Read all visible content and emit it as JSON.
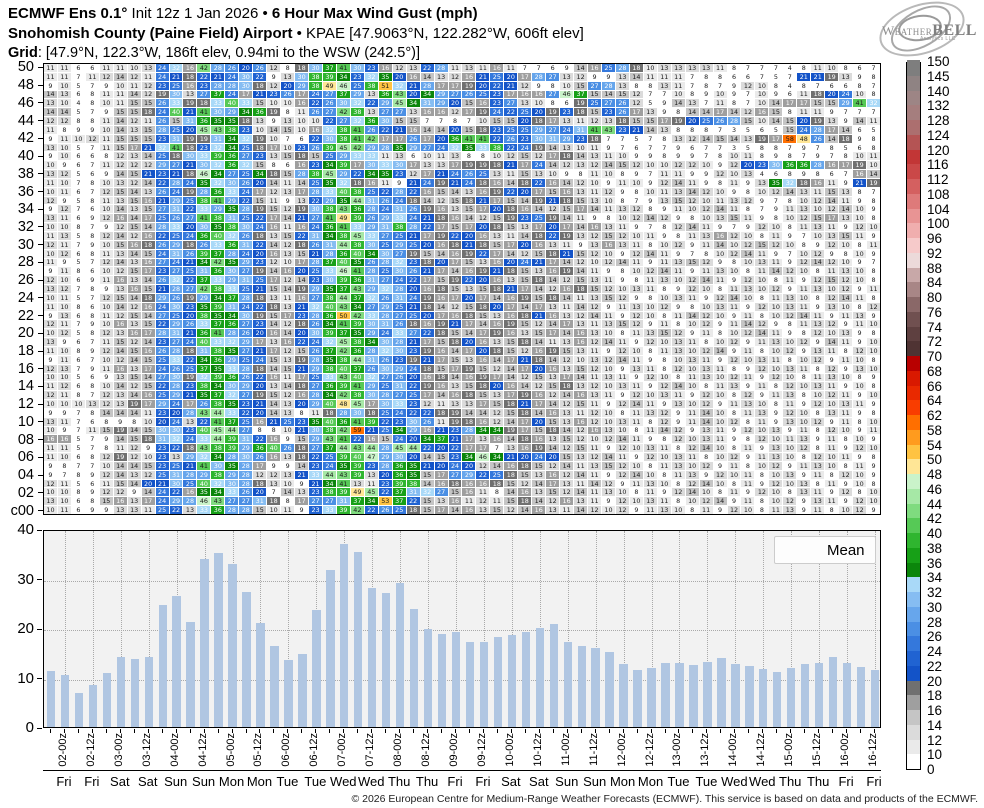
{
  "title": {
    "model": "ECMWF Ens 0.1°",
    "init": " Init 12z 1 Jan 2026 • ",
    "param": "6 Hour Max Wind Gust (mph)",
    "location": "Snohomish County (Paine Field) Airport",
    "station": " • KPAE [47.9063°N, 122.282°W, 606ft elev]",
    "grid_label": "Grid",
    "grid_info": ": [47.9°N, 122.3°W, 186ft elev, 0.94mi to the WSW (242.5°)]"
  },
  "logo": {
    "brand_a": "Weather",
    "brand_b": "BELL",
    "sub": "Analytics LLC"
  },
  "chart_data": [
    {
      "type": "heatmap",
      "columns": 60,
      "row_axis_labels": [
        "50",
        "48",
        "46",
        "44",
        "42",
        "40",
        "38",
        "36",
        "34",
        "32",
        "30",
        "28",
        "26",
        "24",
        "22",
        "20",
        "18",
        "16",
        "14",
        "12",
        "10",
        "08",
        "06",
        "04",
        "02",
        "c00"
      ],
      "colorbar": {
        "ticks": [
          0,
          10,
          12,
          14,
          16,
          18,
          20,
          22,
          24,
          26,
          28,
          30,
          32,
          34,
          36,
          38,
          40,
          42,
          44,
          46,
          48,
          50,
          54,
          58,
          62,
          64,
          66,
          68,
          70,
          72,
          74,
          76,
          80,
          84,
          88,
          92,
          96,
          100,
          104,
          108,
          112,
          116,
          120,
          124,
          128,
          132,
          140,
          145,
          150
        ],
        "bands": [
          "#ffffff",
          "#eaeaea",
          "#dbdbdb",
          "#c5c5c5",
          "#9f9f9f",
          "#707070",
          "#1353c8",
          "#2063d2",
          "#3478dc",
          "#4b8fe4",
          "#67a6ec",
          "#86bdf2",
          "#a9d9f8",
          "#0b860b",
          "#17a017",
          "#2fb52f",
          "#56c956",
          "#7fdb7f",
          "#a6e8a6",
          "#caf3ca",
          "#ffe696",
          "#ffc342",
          "#ff9b1e",
          "#ff6f00",
          "#f93d00",
          "#e92900",
          "#d91900",
          "#b80000",
          "#4f3333",
          "#5e4040",
          "#705050",
          "#8a6868",
          "#a88686",
          "#c8a8a8",
          "#ecdada",
          "#f6caca",
          "#f0aeae",
          "#e89494",
          "#de7a7a",
          "#d46060",
          "#ca4848",
          "#c23636",
          "#b45454",
          "#ac6f6f",
          "#a57e7e",
          "#9d8585",
          "#8f8383",
          "#7e7e7e"
        ]
      },
      "rows": [
        {
          "id": "50",
          "v": "11110606111110132432 16422826202612081830 37413023161213222811 13111611070706091416 25281810131313131108 07070704081110080607"
        },
        {
          "id": "49",
          "v": "11110711121412112421 18222124302209133038 39342332352016141312 16212520172827131209 09131411111107080806 06070507212119130908"
        },
        {
          "id": "48",
          "v": "09100507091011122325 16232828301812202938 49462538513221281717 19202221120908101527 28130808131107080709 12100804080706060807"
        },
        {
          "id": "47",
          "v": "14130608111114121930 13273724172123261724 27372913364320342927 26252317161627463715 14151207071008091009 07100906111820241008"
        },
        {
          "id": "46",
          "v": "13100408101115152633 19183340331510101622 26303222294534312920 15162327131008061925 27261205091413071108 07101417171515294132"
        },
        {
          "id": "45",
          "v": "14140507091515182440 21413029343619081126 27423813272713161612 17192422252019231815 23261713090814141714 12161508111109070707"
        },
        {
          "id": "44",
          "v": "12120808111412112615 31363535181309131010 22273236301515070708 07101515201817131112 13181515171920252628 15101415201913091411"
        },
        {
          "id": "43",
          "v": "11080909101413152825 20454338231014151016 32384126222116141420 15182325252927243141 43232114130808080703 05060515242817140605"
        },
        {
          "id": "42",
          "v": "09111012111515152331 19193134321910070622 30384142171726172036 41412226233031292318 07070507081312141514 13191758482614180908"
        },
        {
          "id": "41",
          "v": "13100507111517213241 18233234251817102326 39454229283529272432 35333822241914131011 09070607070906070703 05080807090708050608"
        },
        {
          "id": "40",
          "v": "09100606081213142518 30333936272313151815 25293333111306101113 08081012151217181413 11100909080909070810 11080908070907081011"
        },
        {
          "id": "39",
          "v": "10090607111212122927 21303236321508061623 34391730333017131317 19191821172414121312 14151210101212100912 20233036362816171910"
        },
        {
          "id": "38",
          "v": "13120506091415212321 18463427253418152838 45292234352312172124 26251311151310090811 10080907111109091210 13040608090806071614"
        },
        {
          "id": "37",
          "v": "11100708101312142228 24353230262014111425 35321816110921241921 24181614182216141210 09111009121411090811 09133532181611092119"
        },
        {
          "id": "36",
          "v": "10110607121514132624 19283633241712131728 33403825222822161514 13161922201715161311 12090810111314121009 08101214131115130807"
        },
        {
          "id": "35",
          "v": "12090508111315162129 25384129221511091322 29354431262418141215 18211715141921181513 10080709131512101113 12090708101214110908"
        },
        {
          "id": "34",
          "v": "09120706101413152731 22332935281915121930 38433628243126191613 15172018161412151714 11131208091110121411 08070911131012141009"
        },
        {
          "id": "33",
          "v": "13110609121614172526 27413831252217142127 41493926293324211816 14121519232519141109 08101214120908101315 11090810121517131008"
        },
        {
          "id": "32",
          "v": "10100807091215142833 20303538302416111624 36413329313828221715 17201815131720171416 13110907081214110907 09121008111311091210"
        },
        {
          "id": "31",
          "v": "11130508121412162225 24364032261813152231 34384533272521171922 20161311141822191312 15121011090811131612 10081109071013151109"
        },
        {
          "id": "30",
          "v": "12110709101516182629 18263336312214121826 31443830252925201618 21181517201613110913 16131108101209111410 12151210080912100811"
        },
        {
          "id": "29",
          "v": "10120608111314152431 26393728242016131521 28364034302719151416 19221714121518211512 10091214110907081012 14110907101209081009"
        },
        {
          "id": "28",
          "v": "11090507121413162724 21344235292312101728 37403526283223182017 15131620242117141210 12141109111315120908 10131109121412100907"
        },
        {
          "id": "27",
          "v": "09110806101215172327 25313630271914162025 33464128253026211714 16192118151316191411 09081012141109111310 08111412100811131008"
        },
        {
          "id": "26",
          "v": "12100609111613142632 22373329312517121423 30393631272422171519 22201613151814121513 11090811131012141109 12100811091215121008"
        },
        {
          "id": "25",
          "v": "13120708091316152128 27423833252115141929 35374329322820161815 13151821171412161815 12101311080912100811 13101209111310120911"
        },
        {
          "id": "24",
          "v": "10110507121514182926 19293437281813111627 38443732263124191617 20171416191518141113 15120908101311091214 10081113100812141108"
        },
        {
          "id": "23",
          "v": "11100806101412162430 23353931242218132132 40433427292521181412 15182017141713111412 09111310120908101311 09121013110913100812"
        },
        {
          "id": "22",
          "v": "09130608111215142725 20383534301915172328 36504233282725201716 18151316182116131214 11091210081114121009 11081012141109111309"
        },
        {
          "id": "21",
          "v": "12110709101613152229 26333736272314121826 34413930312618161921 17141619151214171311 13151209110810120911 14120908111312091110"
        },
        {
          "id": "20",
          "v": "10120508121316172831 21364128262016142030 39373529243327221815 14171916131517141613 10081113151209110810 12141109081210130908"
        },
        {
          "id": "19",
          "v": "13090607111512142327 24403332291713162224 32453834302821171518 20161315181411131612 14110912101311081012 09111310120914110910"
        },
        {
          "id": "18",
          "v": "11100809121415162628 18313835272117121526 37423628323023191614 17201815121619151311 09121008111310121409 11081012091311081210"
        },
        {
          "id": "17",
          "v": "09110607101214152533 22343629252415131928 35384431262319211715 13161417211814121013 12141109081013110912 10131108101209111008"
        },
        {
          "id": "16",
          "v": "12130709111613172426 25373533281814152129 38403726302924181517 19151214172016131512 10091311081210131108 09121013110812091310"
        },
        {
          "id": "15",
          "v": "10100506091315142730 19323936262216111725 33434032272620161814 16191714121513171411 13110912100811131012 11091210081113100809"
        },
        {
          "id": "14",
          "v": "11120608101412152228 23383430292013141827 36394129253122191613 15182016141215181312 10131109121410081113 09110812101311091008"
        },
        {
          "id": "13",
          "v": "12110807121314162529 21353732271915121628 34423830282725171416 18151317191612141613 11091210131109121008 12091113081012110910"
        },
        {
          "id": "12",
          "v": "10101013121319172924 17263835232114132029 40484517303323121113 13171518211714121511 09121411091310120911 13100811091210131109"
        },
        {
          "id": "11",
          "v": "09090708141414112320 28434433222014130811 18283018252422221819 14141215181416131112 10081113120911141008 11130912100813110908"
        },
        {
          "id": "10",
          "v": "13110706080908102024 13224137251621252335 40364139222330261119 18161214172015131612 10131108120911141012 08110913101209110810"
        },
        {
          "id": "09",
          "v": "10090711151914153030 23404544270808102130 38425921253429162123 28343419171518141216 13100811141209131109 12101309110812100911"
        },
        {
          "id": "08",
          "v": "16160507091415183132 24334439312216091529 43412216152420343721 17131614181613151210 12141109081210131109 08121011130911081009"
        },
        {
          "id": "07",
          "v": "11110507081112092322 18433839293640261827 37444344284544222022 17170713161914121511 09121013110812141008 11091310120811091210"
        },
        {
          "id": "06",
          "v": "11100608121912102313 29323428302616131822 25394047293020141523 34463421202420151312 14110912101311081012 09111310081210110908"
        },
        {
          "id": "05",
          "v": "09080707101414152325 21413035281709091423 24353923283635212024 20121416181512141113 15121008111310120911 08101209111310081109"
        },
        {
          "id": "04",
          "v": "09070809121413122531 28293829281212132133 44433913203635151727 29222518151316121411 09121410081113091210 11081013091108121009"
        },
        {
          "id": "03",
          "v": "12110506111514202130 25403230281813100921 34411311233938141618 16161815121417131114 12091113100812141008 11091210130811091008"
        },
        {
          "id": "02",
          "v": "10100809121209142422 16353433262007141323 38394945223731322715 16110814161315121411 13100811091214100811 09121008131109120810"
        },
        {
          "id": "01",
          "v": "13100608151613172429 28464327273118081727 27313734533722151316 11121115181412161311 09121013110810121409 11081012091311091210"
        },
        {
          "id": "c00",
          "v": "10110609091313112522 13333628281510110923 33394222262518151714 16131512141613111412 10120911131008110912 10081113091108101209"
        }
      ]
    },
    {
      "type": "bar",
      "series": [
        {
          "name": "Mean",
          "values": [
            11.5,
            10.7,
            7.0,
            8.5,
            11.1,
            14.3,
            13.8,
            14.2,
            24.8,
            26.8,
            21.5,
            34.3,
            35.5,
            33.3,
            27.6,
            21.3,
            16.6,
            13.6,
            15.0,
            23.8,
            32.1,
            37.3,
            35.8,
            28.4,
            27.3,
            29.4,
            24.0,
            20.1,
            18.9,
            19.4,
            17.4,
            17.4,
            18.4,
            18.7,
            19.3,
            20.2,
            21.0,
            17.4,
            16.5,
            16.2,
            15.3,
            12.9,
            11.6,
            12.0,
            13.0,
            13.1,
            12.6,
            13.2,
            14.1,
            12.9,
            12.5,
            11.9,
            11.3,
            12.1,
            12.9,
            13.1,
            14.2,
            13.0,
            12.2,
            11.7
          ]
        }
      ],
      "x_tick_labels": [
        "02-00z",
        "02-12z",
        "03-00z",
        "03-12z",
        "04-00z",
        "04-12z",
        "05-00z",
        "05-12z",
        "06-00z",
        "06-12z",
        "07-00z",
        "07-12z",
        "08-00z",
        "08-12z",
        "09-00z",
        "09-12z",
        "10-00z",
        "10-12z",
        "11-00z",
        "11-12z",
        "12-00z",
        "12-12z",
        "13-00z",
        "13-12z",
        "14-00z",
        "14-12z",
        "15-00z",
        "15-12z",
        "16-00z",
        "16-12z"
      ],
      "day_labels": [
        "Fri",
        "Fri",
        "Sat",
        "Sat",
        "Sun",
        "Sun",
        "Mon",
        "Mon",
        "Tue",
        "Tue",
        "Wed",
        "Wed",
        "Thu",
        "Thu",
        "Fri",
        "Fri",
        "Sat",
        "Sat",
        "Sun",
        "Sun",
        "Mon",
        "Mon",
        "Tue",
        "Tue",
        "Wed",
        "Wed",
        "Thu",
        "Thu",
        "Fri",
        "Fri"
      ],
      "ylim": [
        0,
        40
      ],
      "yticks": [
        0,
        10,
        20,
        30,
        40
      ],
      "legend_label": "Mean",
      "bar_color": "#b0c6e2",
      "plot_bg": "#f2f2f2",
      "grid": "dotted",
      "legend_position": "upper right"
    }
  ],
  "footer": {
    "copyright": "© 2026 European Centre for Medium-Range Weather Forecasts (ECMWF). This service is based on data and products of the ECMWF."
  }
}
